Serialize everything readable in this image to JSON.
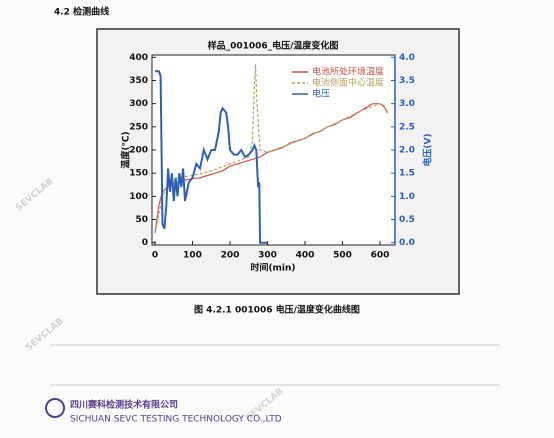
{
  "document": {
    "heading": "4.2 检测曲线",
    "caption": "图 4.2.1 001006 电压/温度变化曲线图",
    "company": {
      "name": "四川赛科检测技术有限公司",
      "english": "SICHUAN SEVC TESTING TECHNOLOGY CO.,LTD"
    },
    "watermark": "SEVCLAB"
  },
  "chart_data": {
    "type": "line",
    "title": "样品_001006_电压/温度变化图",
    "x_label": "时间(min)",
    "y_label": "温度(℃)",
    "y2_label": "电压(V)",
    "xlim": [
      -8,
      640
    ],
    "xticks": [
      0,
      100,
      200,
      300,
      400,
      500,
      600
    ],
    "ylim": [
      -5,
      405
    ],
    "yticks": [
      0,
      50,
      100,
      150,
      200,
      250,
      300,
      350,
      400
    ],
    "y2lim": [
      -0.05,
      4.05
    ],
    "y2ticks": [
      {
        "value": 0,
        "label": "0.0"
      },
      {
        "value": 0.5,
        "label": "0.5"
      },
      {
        "value": 1,
        "label": "1.0"
      },
      {
        "value": 1.5,
        "label": "1.5"
      },
      {
        "value": 2,
        "label": "2.0"
      },
      {
        "value": 2.5,
        "label": "2.5"
      },
      {
        "value": 3,
        "label": "3.0"
      },
      {
        "value": 3.5,
        "label": "3.5"
      },
      {
        "value": 4,
        "label": "4.0"
      }
    ],
    "y2_color": "#2f5fb0",
    "legend": "upper-right",
    "series": [
      {
        "name": "电池所处环境温度",
        "color": "#c8524a",
        "style": "solid",
        "x": [
          0,
          10,
          20,
          40,
          60,
          80,
          100,
          120,
          140,
          160,
          180,
          200,
          220,
          240,
          260,
          280,
          300,
          320,
          340,
          360,
          380,
          400,
          420,
          440,
          460,
          480,
          500,
          520,
          540,
          560,
          580,
          600,
          610,
          620
        ],
        "values": [
          20,
          80,
          110,
          125,
          130,
          135,
          138,
          140,
          145,
          150,
          155,
          165,
          170,
          175,
          180,
          185,
          195,
          200,
          205,
          215,
          220,
          225,
          235,
          240,
          250,
          255,
          265,
          270,
          280,
          290,
          300,
          300,
          295,
          280
        ]
      },
      {
        "name": "电池侧面中心温度",
        "color": "#b8a060",
        "style": "dashed",
        "x": [
          0,
          10,
          20,
          40,
          60,
          100,
          150,
          200,
          250,
          260,
          265,
          268,
          272,
          280,
          300,
          350,
          400,
          450,
          500,
          550,
          600,
          620
        ],
        "values": [
          20,
          60,
          100,
          130,
          140,
          145,
          155,
          170,
          185,
          220,
          340,
          385,
          300,
          200,
          195,
          210,
          225,
          245,
          265,
          285,
          300,
          285
        ]
      },
      {
        "name": "电压",
        "color": "#2f5fb0",
        "style": "solid",
        "axis": "y2",
        "x": [
          0,
          10,
          15,
          20,
          25,
          30,
          35,
          40,
          45,
          50,
          55,
          60,
          65,
          70,
          75,
          80,
          90,
          100,
          110,
          120,
          130,
          140,
          150,
          160,
          170,
          175,
          180,
          190,
          195,
          200,
          205,
          210,
          220,
          230,
          240,
          250,
          260,
          265,
          270,
          275,
          278,
          280,
          285,
          290,
          300
        ],
        "values": [
          3.7,
          3.7,
          3.6,
          0.4,
          0.3,
          0.8,
          1.6,
          1.1,
          1.5,
          0.9,
          1.4,
          1.0,
          1.5,
          1.2,
          1.6,
          0.9,
          1.3,
          1.4,
          1.7,
          1.6,
          2.0,
          1.8,
          2.0,
          2.0,
          2.4,
          2.8,
          2.9,
          2.8,
          2.5,
          2.0,
          1.95,
          1.9,
          1.9,
          2.0,
          1.85,
          1.9,
          2.0,
          2.1,
          2.0,
          1.2,
          1.3,
          0.0,
          0.0,
          0.0,
          0.0
        ]
      }
    ]
  }
}
